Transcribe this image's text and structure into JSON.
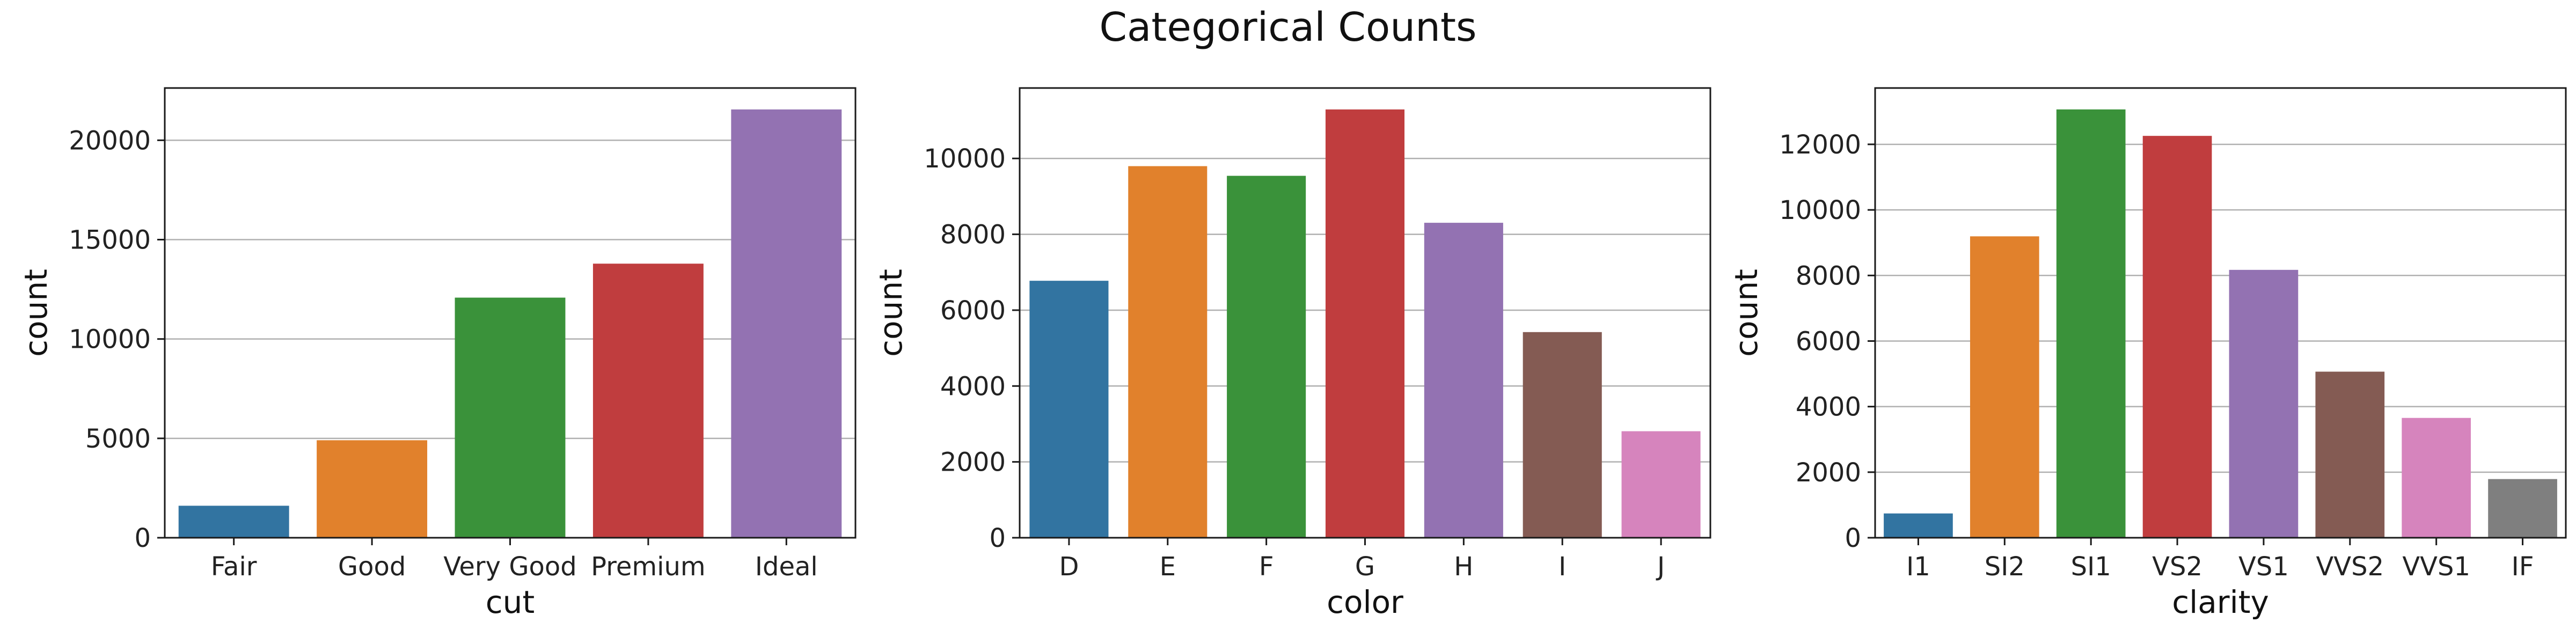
{
  "figure": {
    "title": "Categorical Counts"
  },
  "chart_data": [
    {
      "type": "bar",
      "xlabel": "cut",
      "ylabel": "count",
      "categories": [
        "Fair",
        "Good",
        "Very Good",
        "Premium",
        "Ideal"
      ],
      "values": [
        1610,
        4906,
        12082,
        13791,
        21551
      ],
      "colors": [
        "#3274a1",
        "#e1812c",
        "#3a923a",
        "#c03d3e",
        "#9372b2"
      ],
      "ylim": [
        0,
        22629
      ],
      "yticks": [
        0,
        5000,
        10000,
        15000,
        20000
      ],
      "grid": "horizontal"
    },
    {
      "type": "bar",
      "xlabel": "color",
      "ylabel": "count",
      "categories": [
        "D",
        "E",
        "F",
        "G",
        "H",
        "I",
        "J"
      ],
      "values": [
        6775,
        9797,
        9542,
        11292,
        8304,
        5422,
        2808
      ],
      "colors": [
        "#3274a1",
        "#e1812c",
        "#3a923a",
        "#c03d3e",
        "#9372b2",
        "#845b53",
        "#d684bd"
      ],
      "ylim": [
        0,
        11857
      ],
      "yticks": [
        0,
        2000,
        4000,
        6000,
        8000,
        10000
      ],
      "grid": "horizontal"
    },
    {
      "type": "bar",
      "xlabel": "clarity",
      "ylabel": "count",
      "categories": [
        "I1",
        "SI2",
        "SI1",
        "VS2",
        "VS1",
        "VVS2",
        "VVS1",
        "IF"
      ],
      "values": [
        741,
        9194,
        13065,
        12258,
        8171,
        5066,
        3655,
        1790
      ],
      "colors": [
        "#3274a1",
        "#e1812c",
        "#3a923a",
        "#c03d3e",
        "#9372b2",
        "#845b53",
        "#d684bd",
        "#7f7f7f"
      ],
      "ylim": [
        0,
        13718
      ],
      "yticks": [
        0,
        2000,
        4000,
        6000,
        8000,
        10000,
        12000
      ],
      "grid": "horizontal"
    }
  ]
}
